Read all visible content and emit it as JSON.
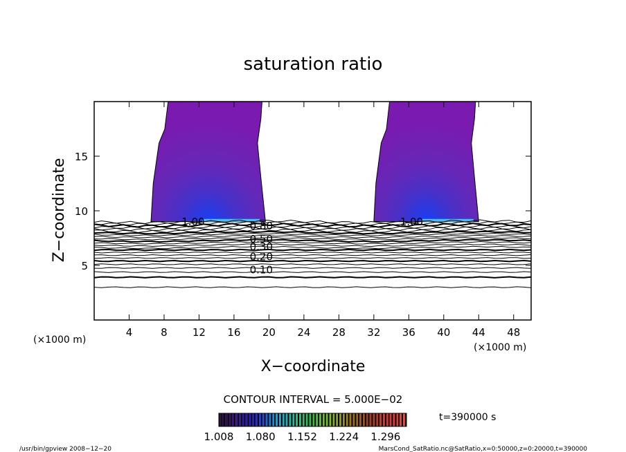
{
  "chart_data": {
    "type": "contour",
    "title": "saturation ratio",
    "xlabel": "X−coordinate",
    "ylabel": "Z−coordinate",
    "x_unit_left": "(×1000 m)",
    "x_unit_right": "(×1000 m)",
    "xlim": [
      0,
      50
    ],
    "ylim": [
      0,
      20
    ],
    "x_ticks": [
      4,
      8,
      12,
      16,
      20,
      24,
      28,
      32,
      36,
      40,
      44,
      48
    ],
    "x_tick_labels": [
      "4",
      "8",
      "12",
      "16",
      "20",
      "24",
      "28",
      "32",
      "36",
      "40",
      "44",
      "48"
    ],
    "y_ticks": [
      5,
      10,
      15
    ],
    "y_tick_labels": [
      "5",
      "10",
      "15"
    ],
    "contour_interval_text": "CONTOUR INTERVAL = 5.000E−02",
    "contour_labels": [
      {
        "text": "0.10",
        "x": 17.8,
        "z": 4.6
      },
      {
        "text": "0.20",
        "x": 17.8,
        "z": 5.8
      },
      {
        "text": "0.30",
        "x": 17.8,
        "z": 6.7
      },
      {
        "text": "0.50",
        "x": 17.8,
        "z": 7.4
      },
      {
        "text": "0.80",
        "x": 17.8,
        "z": 8.6
      },
      {
        "text": "1.00",
        "x": 10.0,
        "z": 9.0
      },
      {
        "text": "1.00",
        "x": 35.0,
        "z": 9.0
      }
    ],
    "plumes": [
      {
        "x_start": 6.5,
        "x_end": 19.6,
        "z_base": 9.0,
        "z_top": 20
      },
      {
        "x_start": 32.0,
        "x_end": 44.0,
        "z_base": 9.0,
        "z_top": 20
      }
    ],
    "colorbar": {
      "min": 1.008,
      "max": 1.332,
      "tick_labels": [
        "1.008",
        "1.080",
        "1.152",
        "1.224",
        "1.296"
      ],
      "colors": [
        "#2a0a3a",
        "#3a10a0",
        "#2020e0",
        "#10a0e0",
        "#20c0a0",
        "#30c040",
        "#80c020",
        "#a08010",
        "#a04010",
        "#e03030",
        "#f04040"
      ]
    },
    "time_label": "t=390000  s"
  },
  "footer": {
    "left": "/usr/bin/gpview   2008−12−20",
    "right": "MarsCond_SatRatio.nc@SatRatio,x=0:50000,z=0:20000,t=390000"
  }
}
